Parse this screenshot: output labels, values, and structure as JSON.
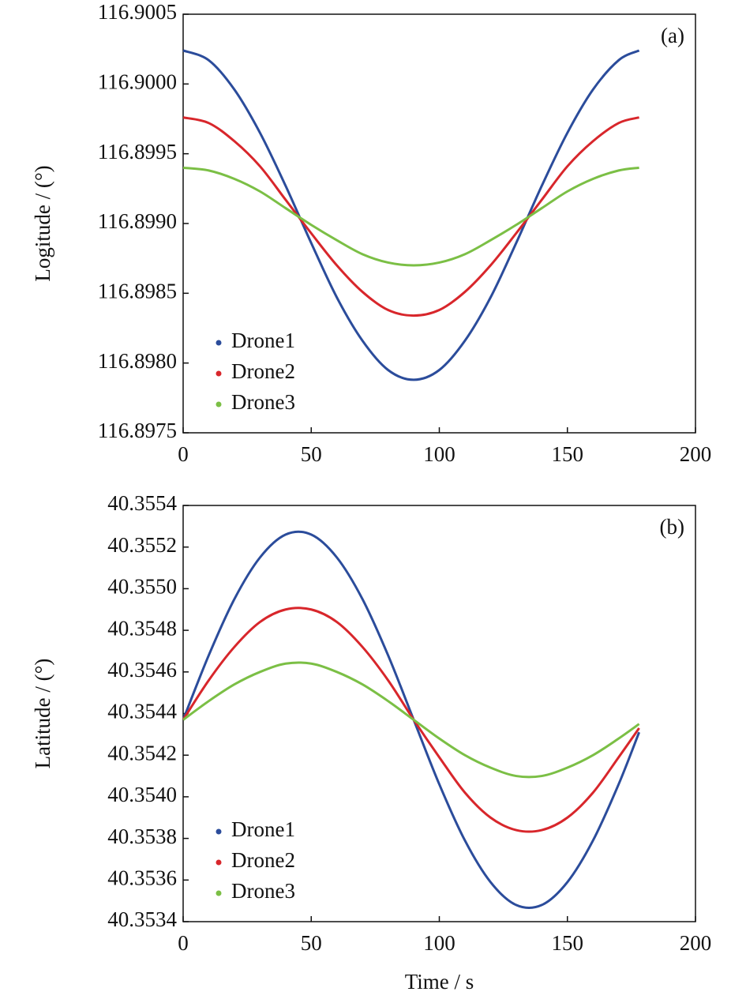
{
  "chart_data": [
    {
      "type": "line",
      "panel_label": "(a)",
      "ylabel": "Logitude / (°)",
      "x": [
        0,
        10,
        20,
        30,
        40,
        50,
        60,
        70,
        80,
        90,
        100,
        110,
        120,
        130,
        140,
        150,
        160,
        170,
        178
      ],
      "series": [
        {
          "name": "Drone1",
          "color": "#2b4c9b",
          "values": [
            116.90024,
            116.90017,
            116.89996,
            116.89965,
            116.89927,
            116.89886,
            116.89847,
            116.89816,
            116.89795,
            116.89788,
            116.89795,
            116.89816,
            116.89847,
            116.89886,
            116.89927,
            116.89965,
            116.89996,
            116.90017,
            116.90024
          ]
        },
        {
          "name": "Drone2",
          "color": "#d8262b",
          "values": [
            116.89976,
            116.89972,
            116.89959,
            116.89941,
            116.89917,
            116.89893,
            116.8987,
            116.89851,
            116.89838,
            116.89834,
            116.89838,
            116.89851,
            116.8987,
            116.89893,
            116.89917,
            116.89941,
            116.89959,
            116.89972,
            116.89976
          ]
        },
        {
          "name": "Drone3",
          "color": "#7bbf45",
          "values": [
            116.8994,
            116.89938,
            116.89932,
            116.89923,
            116.89911,
            116.89899,
            116.89888,
            116.89878,
            116.89872,
            116.8987,
            116.89872,
            116.89878,
            116.89888,
            116.89899,
            116.89911,
            116.89923,
            116.89932,
            116.89938,
            116.8994
          ]
        }
      ],
      "xlim": [
        0,
        200
      ],
      "xticks": [
        0,
        50,
        100,
        150,
        200
      ],
      "ylim": [
        116.8975,
        116.9005
      ],
      "yticks": [
        116.8975,
        {
          "value": 116.898,
          "label": "116.8980"
        },
        116.8985,
        {
          "value": 116.899,
          "label": "116.8990"
        },
        116.8995,
        {
          "value": 116.9,
          "label": "116.9000"
        },
        116.9005
      ],
      "legend": "lower left"
    },
    {
      "type": "line",
      "panel_label": "(b)",
      "ylabel": "Latitude / (°)",
      "xlabel": "Time / s",
      "x": [
        0,
        10,
        20,
        30,
        40,
        50,
        60,
        70,
        80,
        90,
        100,
        110,
        120,
        130,
        140,
        150,
        160,
        170,
        178
      ],
      "series": [
        {
          "name": "Drone1",
          "color": "#2b4c9b",
          "values": [
            40.35437,
            40.35468,
            40.35495,
            40.35515,
            40.35526,
            40.35526,
            40.35515,
            40.35495,
            40.35468,
            40.35437,
            40.35406,
            40.35379,
            40.35359,
            40.35348,
            40.35348,
            40.35359,
            40.35379,
            40.35406,
            40.35431
          ]
        },
        {
          "name": "Drone2",
          "color": "#d8262b",
          "values": [
            40.35437,
            40.35456,
            40.35472,
            40.35484,
            40.3549,
            40.3549,
            40.35484,
            40.35472,
            40.35456,
            40.35437,
            40.35419,
            40.35402,
            40.3539,
            40.35384,
            40.35384,
            40.3539,
            40.35402,
            40.35419,
            40.35433
          ]
        },
        {
          "name": "Drone3",
          "color": "#7bbf45",
          "values": [
            40.35437,
            40.35446,
            40.35454,
            40.3546,
            40.35464,
            40.35464,
            40.3546,
            40.35454,
            40.35446,
            40.35437,
            40.35428,
            40.3542,
            40.35414,
            40.3541,
            40.3541,
            40.35414,
            40.3542,
            40.35428,
            40.35435
          ]
        }
      ],
      "xlim": [
        0,
        200
      ],
      "xticks": [
        0,
        50,
        100,
        150,
        200
      ],
      "ylim": [
        40.3534,
        40.3554
      ],
      "yticks": [
        40.3534,
        40.3536,
        40.3538,
        {
          "value": 40.354,
          "label": "40.3540"
        },
        40.3542,
        40.3544,
        40.3546,
        40.3548,
        {
          "value": 40.355,
          "label": "40.3550"
        },
        40.3552,
        40.3554
      ],
      "legend": "lower left"
    }
  ]
}
